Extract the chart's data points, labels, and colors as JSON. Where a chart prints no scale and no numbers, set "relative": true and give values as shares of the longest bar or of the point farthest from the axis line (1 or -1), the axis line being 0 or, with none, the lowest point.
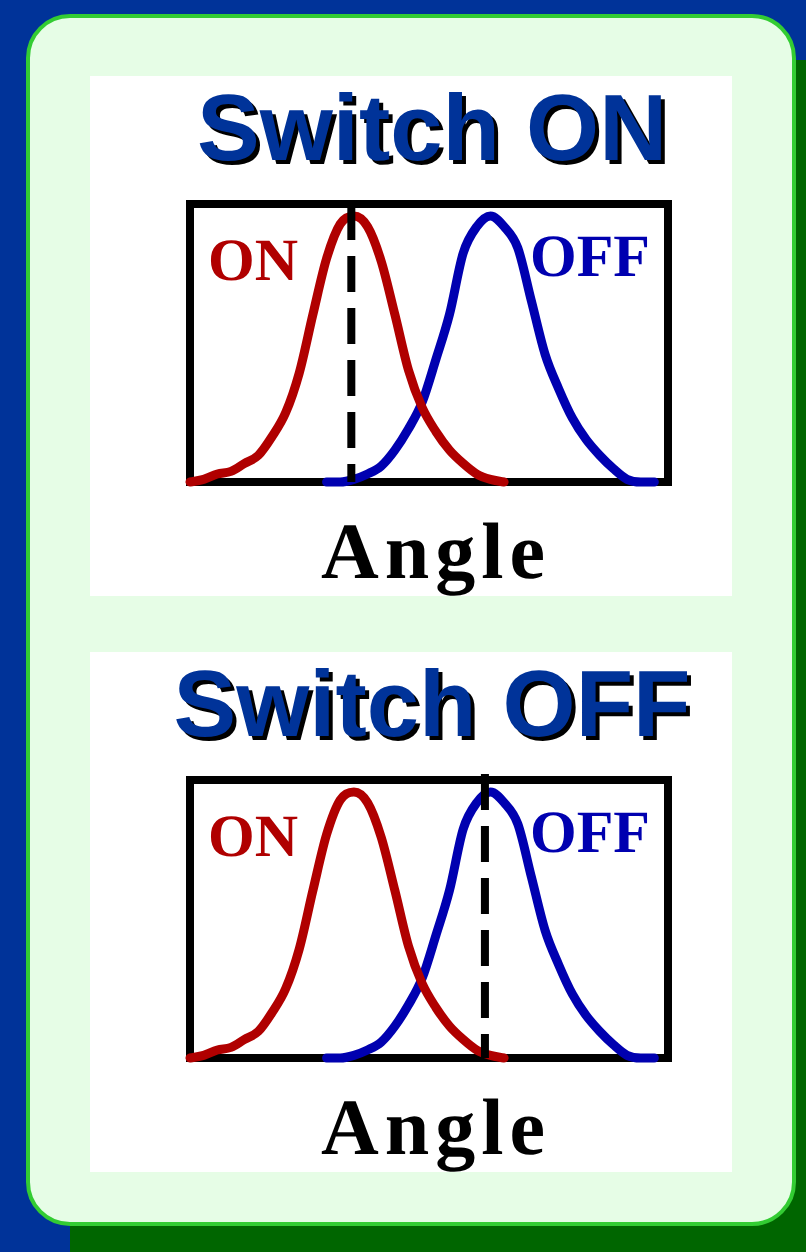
{
  "chart_data": [
    {
      "type": "line",
      "title": "Switch ON",
      "xlabel": "Angle",
      "categories": [
        null,
        null,
        null,
        null,
        null,
        null,
        null,
        null,
        null,
        null,
        null,
        null,
        null,
        null,
        null,
        null,
        null,
        null,
        null,
        null,
        null,
        null,
        null,
        null,
        null,
        null,
        null,
        null,
        null,
        null,
        null,
        null,
        null,
        null,
        null,
        null
      ],
      "relative": true,
      "series": [
        {
          "name": "ON",
          "color": "#b00000",
          "values": [
            0,
            0.01,
            0.03,
            0.04,
            0.07,
            0.1,
            0.17,
            0.26,
            0.41,
            0.63,
            0.84,
            0.97,
            1,
            0.96,
            0.83,
            0.63,
            0.42,
            0.28,
            0.19,
            0.12,
            0.07,
            0.03,
            0.01,
            0,
            null,
            null,
            null,
            null,
            null,
            null,
            null,
            null,
            null,
            null,
            null,
            null
          ]
        },
        {
          "name": "OFF",
          "color": "#0000b0",
          "values": [
            null,
            null,
            null,
            null,
            null,
            null,
            null,
            null,
            null,
            null,
            0,
            0,
            0.01,
            0.03,
            0.06,
            0.12,
            0.2,
            0.3,
            0.46,
            0.63,
            0.86,
            0.96,
            1,
            0.96,
            0.88,
            0.68,
            0.48,
            0.35,
            0.24,
            0.16,
            0.1,
            0.05,
            0.01,
            0,
            0,
            null
          ]
        }
      ],
      "grid": false,
      "legend": false,
      "marker": "none",
      "line_style": "solid",
      "tick_labels": false
    },
    {
      "type": "line",
      "title": "Switch OFF",
      "xlabel": "Angle",
      "categories": [
        null,
        null,
        null,
        null,
        null,
        null,
        null,
        null,
        null,
        null,
        null,
        null,
        null,
        null,
        null,
        null,
        null,
        null,
        null,
        null,
        null,
        null,
        null,
        null,
        null,
        null,
        null,
        null,
        null,
        null,
        null,
        null,
        null,
        null,
        null,
        null
      ],
      "relative": true,
      "series": [
        {
          "name": "ON",
          "color": "#b00000",
          "values": [
            0,
            0.01,
            0.03,
            0.04,
            0.07,
            0.1,
            0.17,
            0.26,
            0.41,
            0.63,
            0.84,
            0.97,
            1,
            0.96,
            0.83,
            0.63,
            0.42,
            0.28,
            0.19,
            0.12,
            0.07,
            0.03,
            0.01,
            0,
            null,
            null,
            null,
            null,
            null,
            null,
            null,
            null,
            null,
            null,
            null,
            null
          ]
        },
        {
          "name": "OFF",
          "color": "#0000b0",
          "values": [
            null,
            null,
            null,
            null,
            null,
            null,
            null,
            null,
            null,
            null,
            0,
            0,
            0.01,
            0.03,
            0.06,
            0.12,
            0.2,
            0.3,
            0.46,
            0.63,
            0.86,
            0.96,
            1,
            0.96,
            0.88,
            0.68,
            0.48,
            0.35,
            0.24,
            0.16,
            0.1,
            0.05,
            0.01,
            0,
            0,
            null
          ]
        }
      ],
      "grid": false,
      "legend": false,
      "marker": "none",
      "line_style": "solid",
      "tick_labels": false
    }
  ]
}
